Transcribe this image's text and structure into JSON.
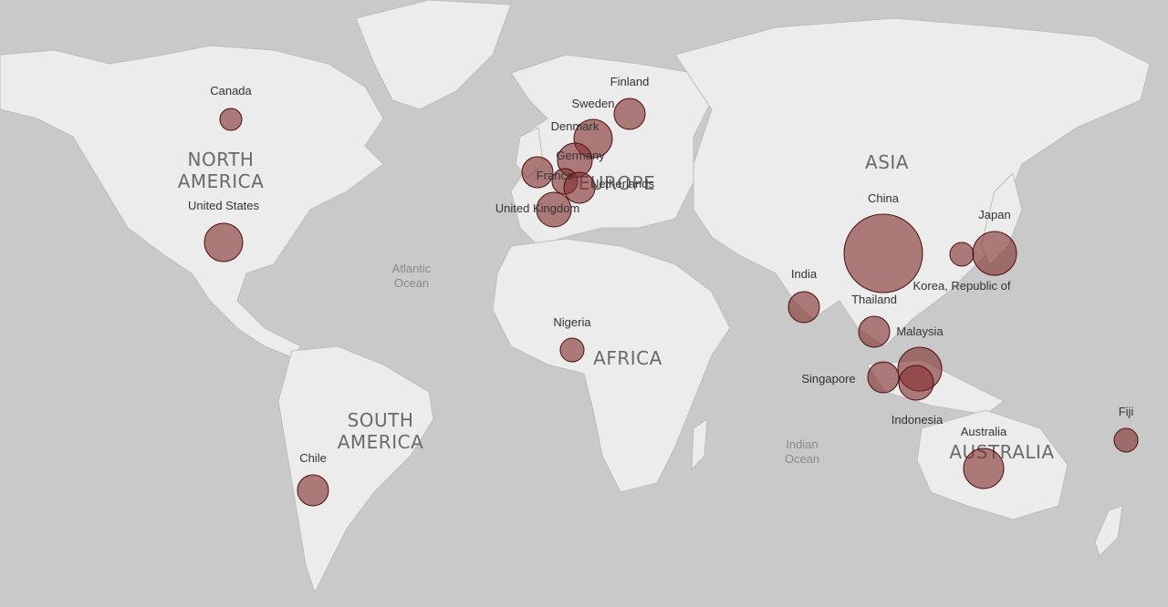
{
  "continents": {
    "north_america_line1": "NORTH",
    "north_america_line2": "AMERICA",
    "south_america_line1": "SOUTH",
    "south_america_line2": "AMERICA",
    "europe": "EUROPE",
    "africa": "AFRICA",
    "asia": "ASIA",
    "australia": "AUSTRALIA"
  },
  "oceans": {
    "atlantic_line1": "Atlantic",
    "atlantic_line2": "Ocean",
    "indian_line1": "Indian",
    "indian_line2": "Ocean"
  },
  "colors": {
    "water": "#c9c9c9",
    "land": "#ececec",
    "bubble_fill": "#822d2d",
    "bubble_stroke": "#4a0e0e"
  },
  "countries": [
    {
      "name": "Canada"
    },
    {
      "name": "United States"
    },
    {
      "name": "Chile"
    },
    {
      "name": "Finland"
    },
    {
      "name": "Sweden"
    },
    {
      "name": "Denmark"
    },
    {
      "name": "Germany"
    },
    {
      "name": "France"
    },
    {
      "name": "Netherlands"
    },
    {
      "name": "United Kingdom"
    },
    {
      "name": "Nigeria"
    },
    {
      "name": "India"
    },
    {
      "name": "China"
    },
    {
      "name": "Japan"
    },
    {
      "name": "Korea, Republic of"
    },
    {
      "name": "Thailand"
    },
    {
      "name": "Malaysia"
    },
    {
      "name": "Singapore"
    },
    {
      "name": "Indonesia"
    },
    {
      "name": "Australia"
    },
    {
      "name": "Fiji"
    }
  ]
}
